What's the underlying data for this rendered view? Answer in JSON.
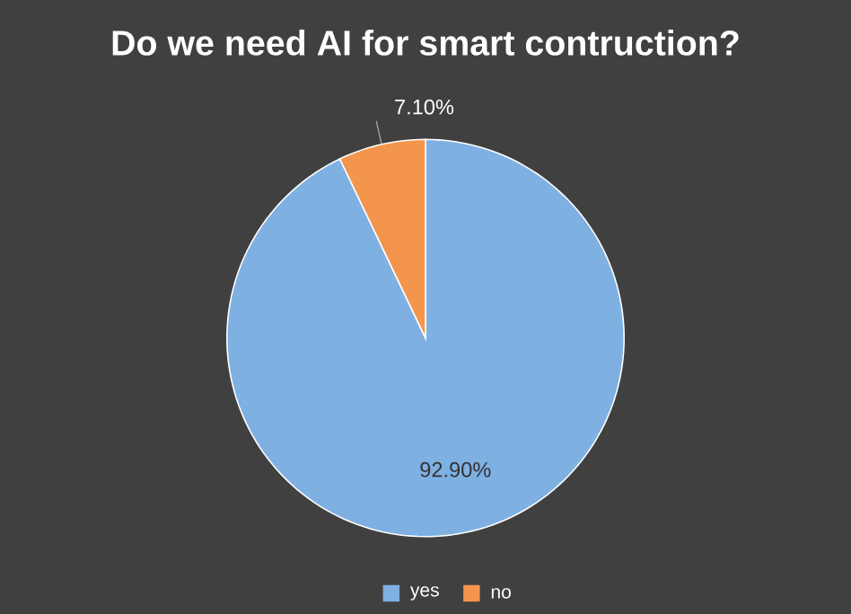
{
  "chart_data": {
    "type": "pie",
    "title": "Do we need AI for smart contruction?",
    "categories": [
      "yes",
      "no"
    ],
    "values": [
      92.9,
      7.1
    ],
    "value_labels": [
      "92.90%",
      "7.10%"
    ],
    "colors": [
      "#7fb0e2",
      "#f4954d"
    ],
    "legend": "bottom"
  }
}
